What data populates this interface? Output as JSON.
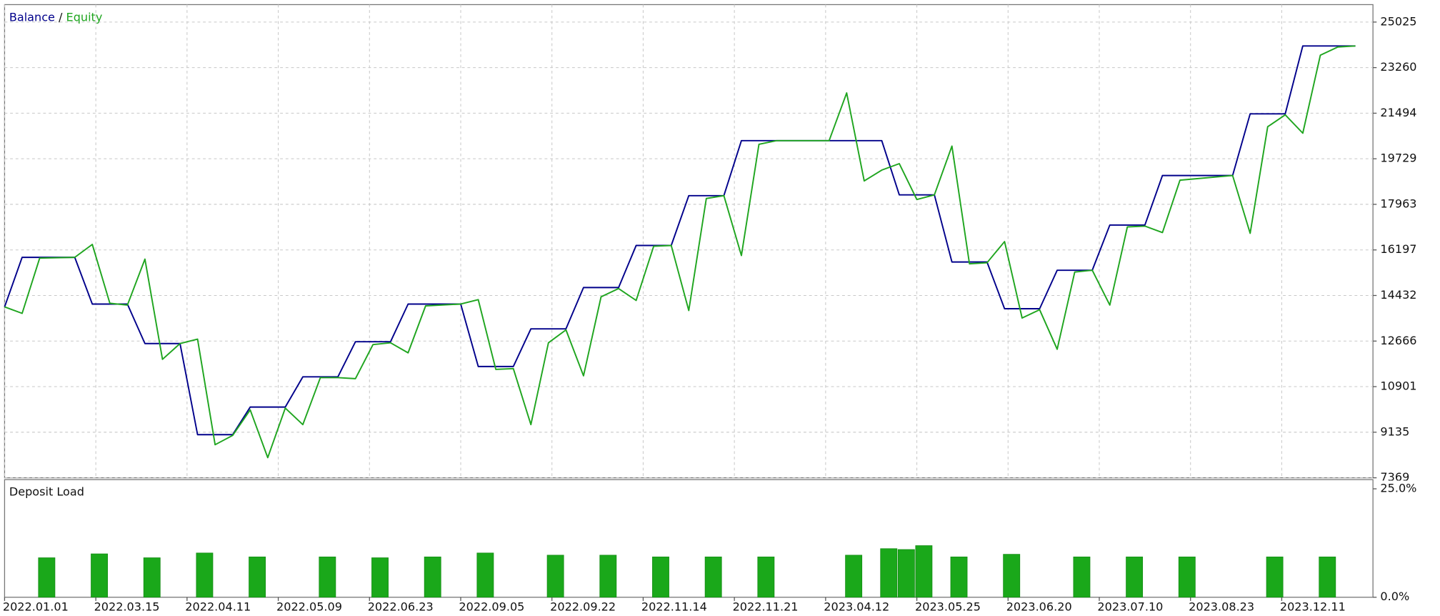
{
  "chart_data": [
    {
      "type": "line",
      "title_separator": "/",
      "xlim": [
        0,
        78
      ],
      "ylim": [
        7369,
        25701
      ],
      "yticks": [
        25025,
        23260,
        21494,
        19729,
        17963,
        16197,
        14432,
        12666,
        10901,
        9135,
        7369
      ],
      "grid": true,
      "series": [
        {
          "name": "Balance",
          "color": "#00008b",
          "x": [
            0,
            1,
            4,
            5,
            7,
            8,
            10,
            11,
            13,
            14,
            16,
            17,
            19,
            20,
            22,
            23,
            26,
            27,
            29,
            30,
            32,
            33,
            35,
            36,
            38,
            39,
            41,
            42,
            50,
            51,
            53,
            54,
            56,
            57,
            59,
            60,
            62,
            63,
            65,
            66,
            70,
            71,
            73,
            74,
            77
          ],
          "values": [
            13990,
            15910,
            15910,
            14100,
            14100,
            12570,
            12570,
            9040,
            9040,
            10110,
            10110,
            11280,
            11280,
            12640,
            12640,
            14100,
            14100,
            11680,
            11680,
            13140,
            13140,
            14740,
            14740,
            16370,
            16370,
            18300,
            18300,
            20430,
            20430,
            18330,
            18330,
            15730,
            15730,
            13920,
            13920,
            15410,
            15410,
            17160,
            17160,
            19080,
            19080,
            21470,
            21470,
            24100,
            24100
          ]
        },
        {
          "name": "Equity",
          "color": "#1fa51f",
          "x": [
            0,
            1,
            2,
            4,
            5,
            6,
            7,
            8,
            9,
            10,
            11,
            12,
            13,
            14,
            15,
            16,
            17,
            18,
            19,
            20,
            21,
            22,
            23,
            24,
            26,
            27,
            28,
            29,
            30,
            31,
            32,
            33,
            34,
            35,
            36,
            37,
            38,
            39,
            40,
            41,
            42,
            43,
            44,
            47,
            48,
            49,
            50,
            51,
            52,
            53,
            54,
            55,
            56,
            57,
            58,
            59,
            60,
            61,
            62,
            63,
            64,
            65,
            66,
            67,
            70,
            71,
            72,
            73,
            74,
            75,
            76,
            77
          ],
          "values": [
            13990,
            13740,
            15880,
            15910,
            16410,
            14130,
            14060,
            15840,
            11960,
            12570,
            12740,
            8650,
            9010,
            10000,
            8150,
            10070,
            9430,
            11250,
            11250,
            11210,
            12530,
            12600,
            12210,
            14030,
            14100,
            14270,
            11570,
            11600,
            9430,
            12600,
            13100,
            11320,
            14380,
            14700,
            14240,
            16340,
            16370,
            13850,
            18190,
            18300,
            15980,
            20290,
            20430,
            20430,
            22280,
            18870,
            19290,
            19540,
            18150,
            18330,
            20220,
            15660,
            15700,
            16520,
            13560,
            13880,
            12350,
            15340,
            15410,
            14060,
            17090,
            17120,
            16870,
            18900,
            19080,
            16840,
            20970,
            21430,
            20720,
            23740,
            24060,
            24100
          ]
        }
      ]
    },
    {
      "type": "bar",
      "title": "Deposit Load",
      "color": "#1aa81a",
      "xlim": [
        0,
        78
      ],
      "ylim": [
        0,
        25
      ],
      "yticks": [
        {
          "value": 25,
          "label": "25.0%"
        },
        {
          "value": 0,
          "label": "0.0%"
        }
      ],
      "x": [
        2,
        5,
        8,
        11,
        14,
        18,
        21,
        24,
        27,
        31,
        34,
        37,
        40,
        43,
        48,
        50,
        51,
        52,
        54,
        57,
        61,
        64,
        67,
        72,
        75
      ],
      "values": [
        9.1,
        10.0,
        9.1,
        10.2,
        9.3,
        9.3,
        9.1,
        9.3,
        10.2,
        9.7,
        9.7,
        9.3,
        9.3,
        9.3,
        9.7,
        11.2,
        11.0,
        11.9,
        9.3,
        9.9,
        9.3,
        9.3,
        9.3,
        9.3,
        9.3
      ],
      "xticks": [
        {
          "value": 0,
          "label": "2022.01.01"
        },
        {
          "value": 5.2,
          "label": "2022.03.15"
        },
        {
          "value": 10.4,
          "label": "2022.04.11"
        },
        {
          "value": 15.6,
          "label": "2022.05.09"
        },
        {
          "value": 20.8,
          "label": "2022.06.23"
        },
        {
          "value": 26,
          "label": "2022.09.05"
        },
        {
          "value": 31.2,
          "label": "2022.09.22"
        },
        {
          "value": 36.4,
          "label": "2022.11.14"
        },
        {
          "value": 41.6,
          "label": "2022.11.21"
        },
        {
          "value": 46.8,
          "label": "2023.04.12"
        },
        {
          "value": 52,
          "label": "2023.05.25"
        },
        {
          "value": 57.2,
          "label": "2023.06.20"
        },
        {
          "value": 62.4,
          "label": "2023.07.10"
        },
        {
          "value": 67.6,
          "label": "2023.08.23"
        },
        {
          "value": 72.8,
          "label": "2023.12.11"
        }
      ]
    }
  ]
}
